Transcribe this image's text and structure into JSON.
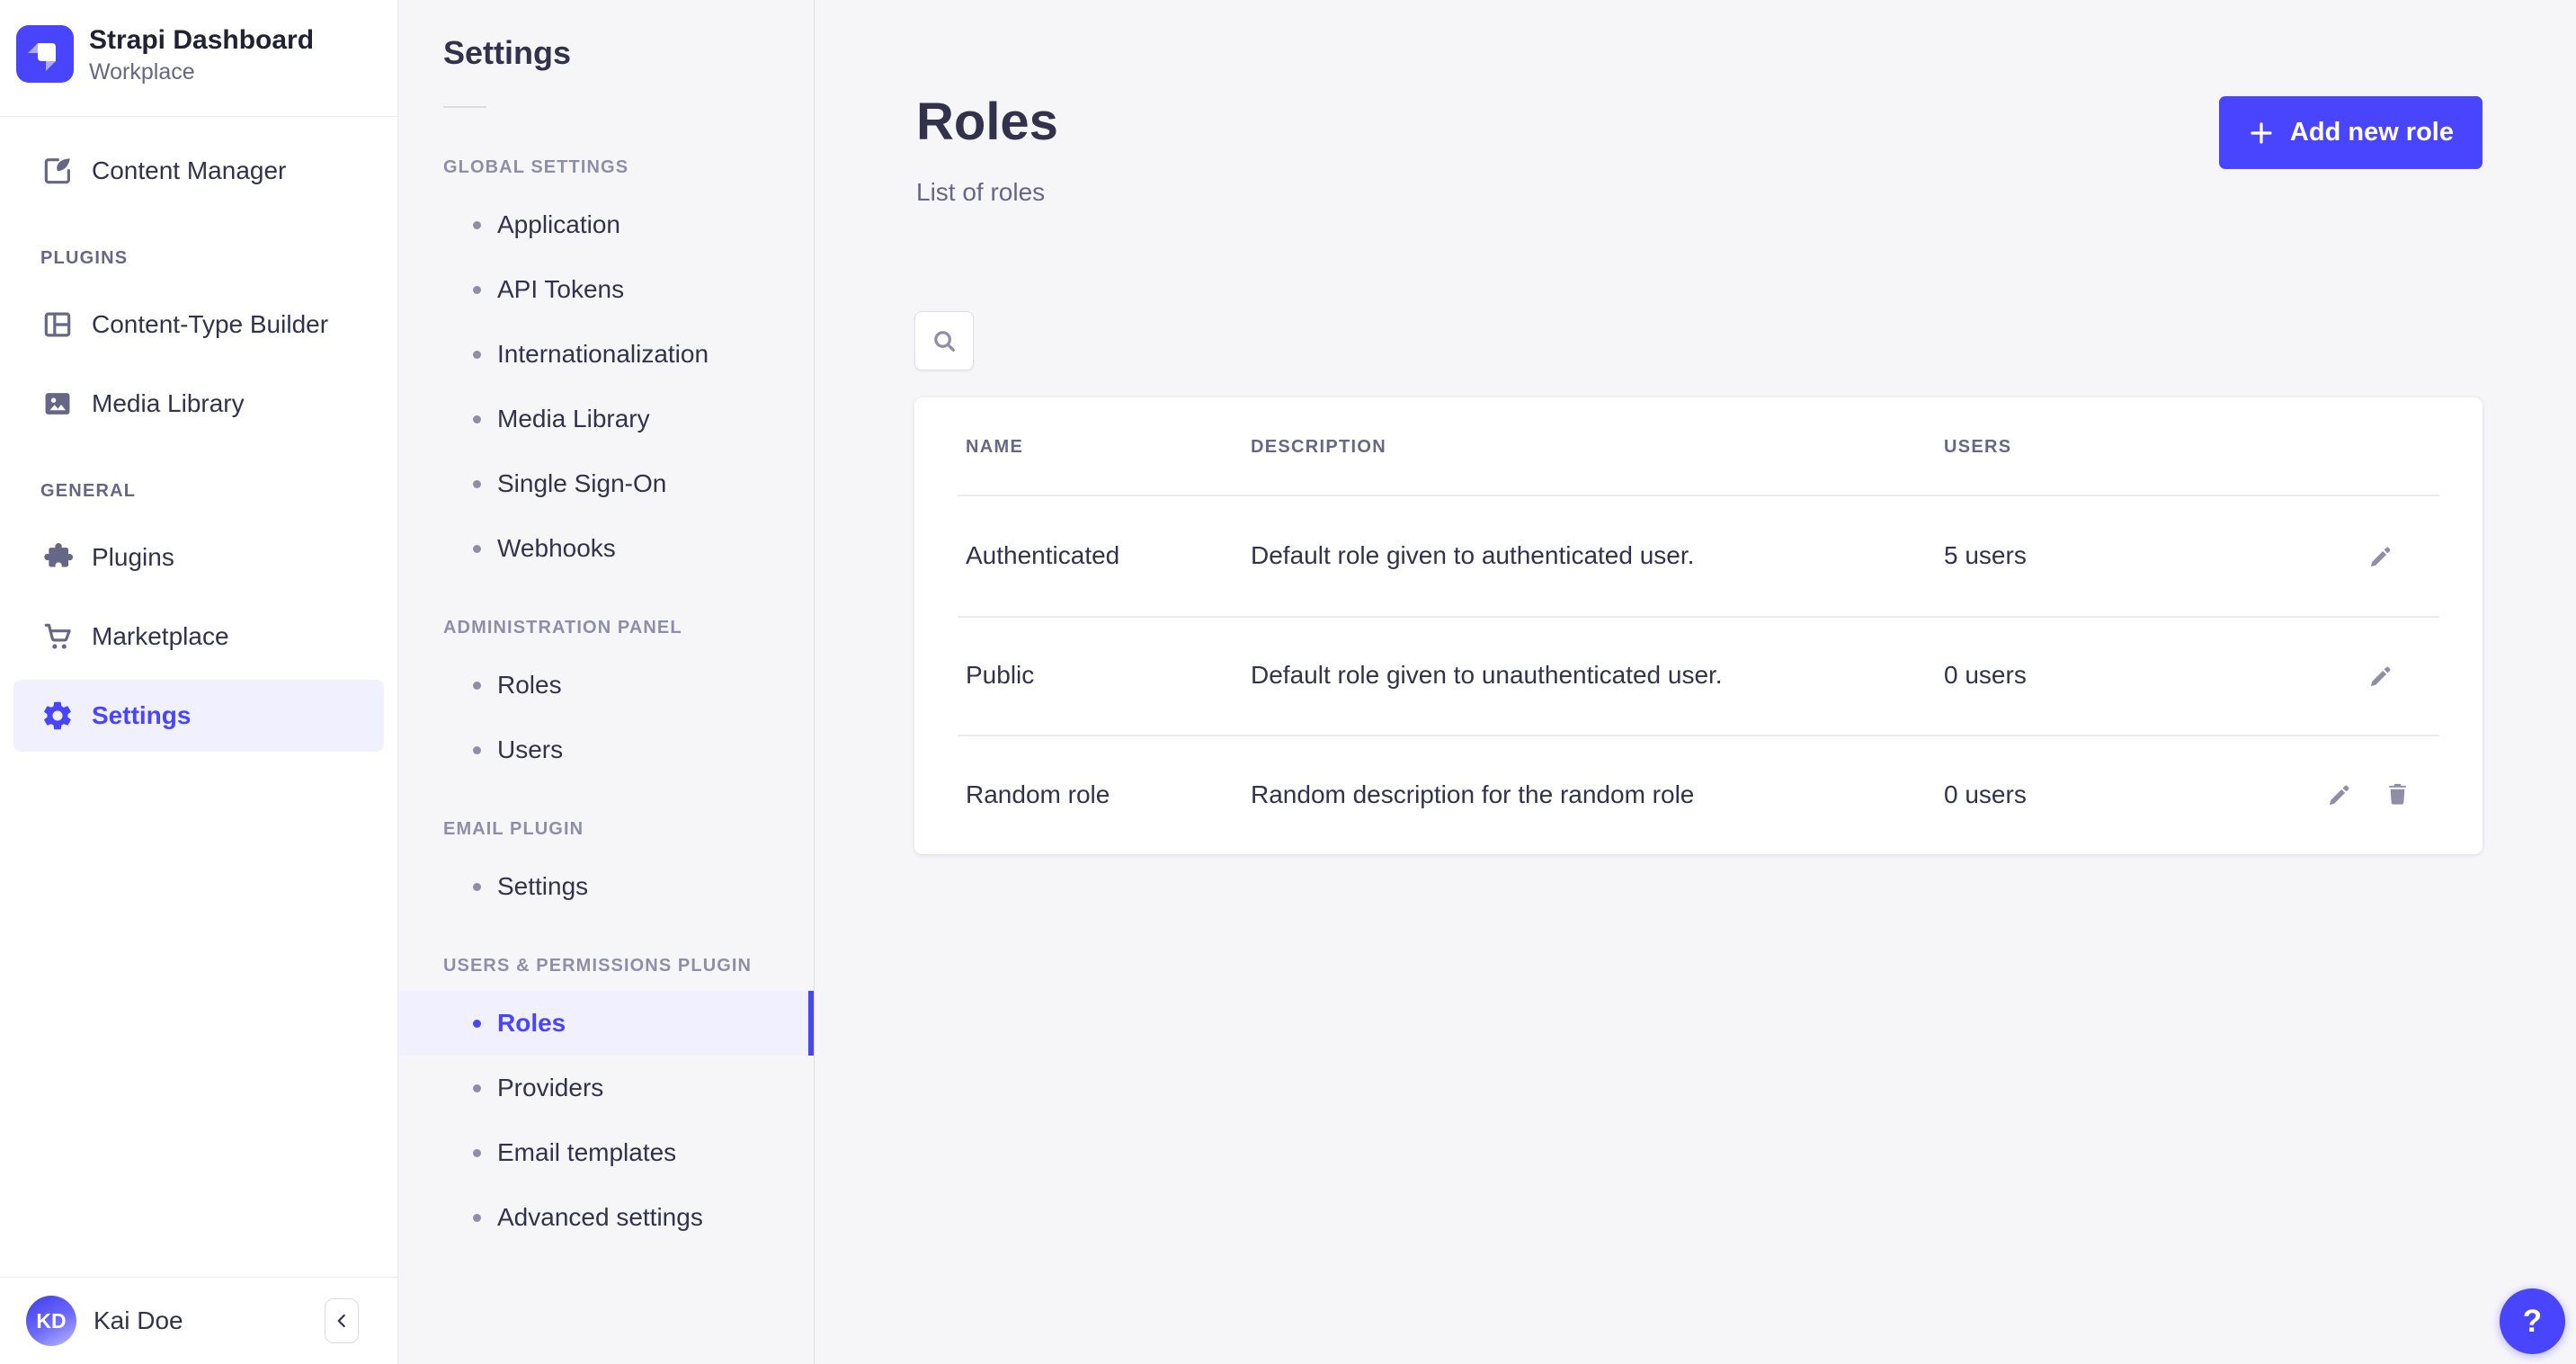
{
  "brand": {
    "title": "Strapi Dashboard",
    "subtitle": "Workplace",
    "logo_icon": "strapi-logo-icon"
  },
  "colors": {
    "primary": "#4945FF",
    "primary_light_bg": "#F0F0FF",
    "text_dark": "#32324D",
    "text_muted": "#666687",
    "text_soft": "#8E8EA9",
    "border": "#DCDCE4",
    "separator": "#EAEAEF"
  },
  "main_nav": {
    "sections": [
      {
        "label": "",
        "items": [
          {
            "label": "Content Manager",
            "icon": "content-manager-icon",
            "active": false
          }
        ]
      },
      {
        "label": "PLUGINS",
        "items": [
          {
            "label": "Content-Type Builder",
            "icon": "content-type-builder-icon",
            "active": false
          },
          {
            "label": "Media Library",
            "icon": "media-library-icon",
            "active": false
          }
        ]
      },
      {
        "label": "GENERAL",
        "items": [
          {
            "label": "Plugins",
            "icon": "plugins-icon",
            "active": false
          },
          {
            "label": "Marketplace",
            "icon": "marketplace-icon",
            "active": false
          },
          {
            "label": "Settings",
            "icon": "settings-icon",
            "active": true
          }
        ]
      }
    ],
    "user": {
      "initials": "KD",
      "name": "Kai Doe"
    },
    "collapse_icon": "chevron-left-icon"
  },
  "subnav": {
    "title": "Settings",
    "sections": [
      {
        "label": "GLOBAL SETTINGS",
        "items": [
          {
            "label": "Application",
            "active": false
          },
          {
            "label": "API Tokens",
            "active": false
          },
          {
            "label": "Internationalization",
            "active": false
          },
          {
            "label": "Media Library",
            "active": false
          },
          {
            "label": "Single Sign-On",
            "active": false
          },
          {
            "label": "Webhooks",
            "active": false
          }
        ]
      },
      {
        "label": "ADMINISTRATION PANEL",
        "items": [
          {
            "label": "Roles",
            "active": false
          },
          {
            "label": "Users",
            "active": false
          }
        ]
      },
      {
        "label": "EMAIL PLUGIN",
        "items": [
          {
            "label": "Settings",
            "active": false
          }
        ]
      },
      {
        "label": "USERS & PERMISSIONS PLUGIN",
        "items": [
          {
            "label": "Roles",
            "active": true
          },
          {
            "label": "Providers",
            "active": false
          },
          {
            "label": "Email templates",
            "active": false
          },
          {
            "label": "Advanced settings",
            "active": false
          }
        ]
      }
    ]
  },
  "main": {
    "title": "Roles",
    "subtitle": "List of roles",
    "add_button_label": "Add new role",
    "add_button_icon": "plus-icon",
    "search_icon": "search-icon",
    "table": {
      "columns": [
        "NAME",
        "DESCRIPTION",
        "USERS"
      ],
      "rows": [
        {
          "name": "Authenticated",
          "description": "Default role given to authenticated user.",
          "users": "5 users",
          "actions": [
            "edit"
          ]
        },
        {
          "name": "Public",
          "description": "Default role given to unauthenticated user.",
          "users": "0 users",
          "actions": [
            "edit"
          ]
        },
        {
          "name": "Random role",
          "description": "Random description for the random role",
          "users": "0 users",
          "actions": [
            "edit",
            "delete"
          ]
        }
      ]
    }
  },
  "help": {
    "label": "?"
  }
}
